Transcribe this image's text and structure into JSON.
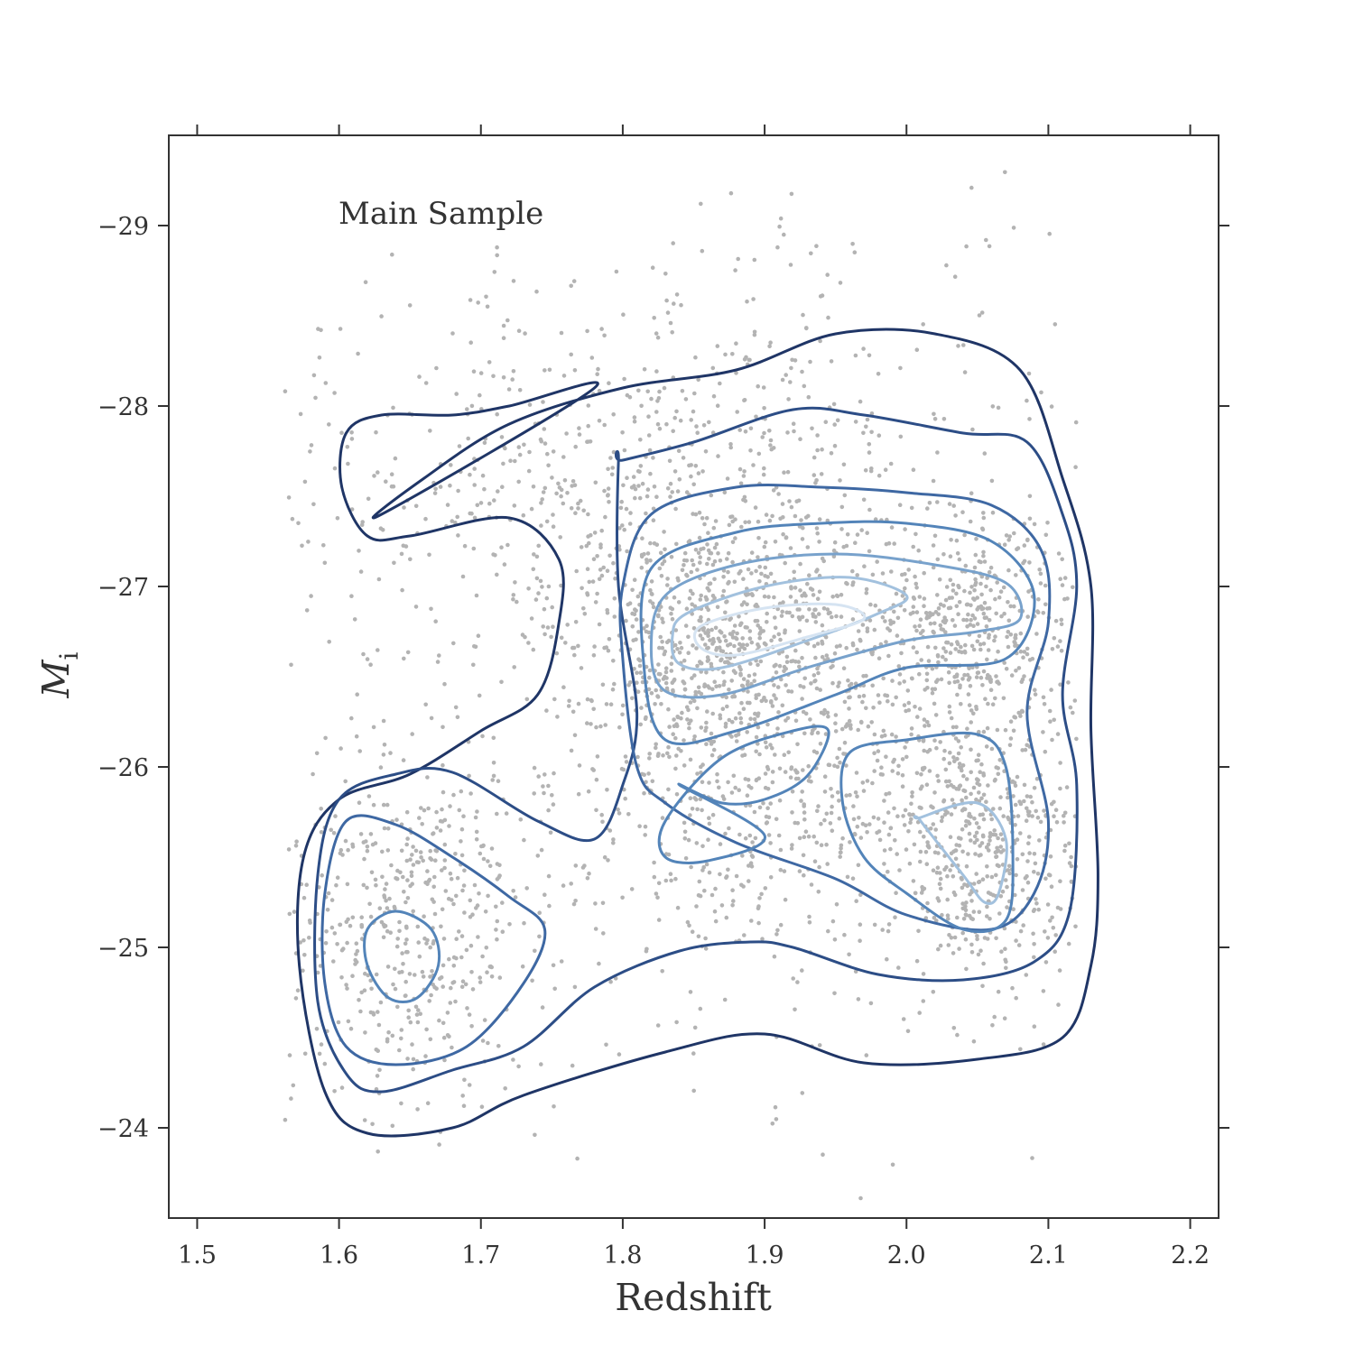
{
  "chart_data": {
    "type": "scatter",
    "title": "",
    "annotation": "Main Sample",
    "xlabel": "Redshift",
    "ylabel": "M",
    "ylabel_subscript": "i",
    "xlim": [
      1.48,
      2.22
    ],
    "ylim": [
      -23.5,
      -29.5
    ],
    "y_inverted": true,
    "xticks": [
      1.5,
      1.6,
      1.7,
      1.8,
      1.9,
      2.0,
      2.1,
      2.2
    ],
    "xtick_labels": [
      "1.5",
      "1.6",
      "1.7",
      "1.8",
      "1.9",
      "2.0",
      "2.1",
      "2.2"
    ],
    "yticks": [
      -29,
      -28,
      -27,
      -26,
      -25,
      -24
    ],
    "ytick_labels": [
      "−29",
      "−28",
      "−27",
      "−26",
      "−25",
      "−24"
    ],
    "grid": false,
    "colors": {
      "points": "#b3b3b3",
      "axes": "#333333",
      "contour_levels": [
        "#1f3566",
        "#2c4d86",
        "#3e68a3",
        "#5384b9",
        "#78a2cc",
        "#a2c1de",
        "#d6e4f2"
      ]
    },
    "scatter_clusters": [
      {
        "cx": 1.87,
        "cy": -26.75,
        "sx": 0.06,
        "sy": 0.35,
        "n": 700
      },
      {
        "cx": 2.04,
        "cy": -26.8,
        "sx": 0.04,
        "sy": 0.3,
        "n": 450
      },
      {
        "cx": 2.05,
        "cy": -25.6,
        "sx": 0.035,
        "sy": 0.4,
        "n": 550
      },
      {
        "cx": 1.89,
        "cy": -25.9,
        "sx": 0.07,
        "sy": 0.5,
        "n": 500
      },
      {
        "cx": 1.645,
        "cy": -25.1,
        "sx": 0.04,
        "sy": 0.5,
        "n": 450
      },
      {
        "cx": 1.68,
        "cy": -27.6,
        "sx": 0.07,
        "sy": 0.35,
        "n": 150
      },
      {
        "cx": 1.86,
        "cy": -27.7,
        "sx": 0.1,
        "sy": 0.5,
        "n": 400
      },
      {
        "cx": 1.86,
        "cy": -26.0,
        "sx": 0.18,
        "sy": 1.2,
        "n": 400
      },
      {
        "cx": 1.9,
        "cy": -28.3,
        "sx": 0.15,
        "sy": 0.5,
        "n": 80
      }
    ],
    "contours": [
      {
        "level": 1,
        "color": "#1f3566",
        "points": [
          [
            1.63,
            -27.4
          ],
          [
            1.66,
            -27.6
          ],
          [
            1.72,
            -27.9
          ],
          [
            1.8,
            -28.1
          ],
          [
            1.88,
            -28.2
          ],
          [
            1.95,
            -28.4
          ],
          [
            2.02,
            -28.4
          ],
          [
            2.08,
            -28.2
          ],
          [
            2.11,
            -27.6
          ],
          [
            2.13,
            -27.0
          ],
          [
            2.13,
            -26.2
          ],
          [
            2.135,
            -25.4
          ],
          [
            2.13,
            -24.9
          ],
          [
            2.11,
            -24.5
          ],
          [
            2.05,
            -24.38
          ],
          [
            1.97,
            -24.36
          ],
          [
            1.9,
            -24.52
          ],
          [
            1.83,
            -24.42
          ],
          [
            1.73,
            -24.18
          ],
          [
            1.68,
            -24.0
          ],
          [
            1.62,
            -23.97
          ],
          [
            1.59,
            -24.2
          ],
          [
            1.572,
            -24.9
          ],
          [
            1.575,
            -25.5
          ],
          [
            1.6,
            -25.82
          ],
          [
            1.65,
            -25.96
          ],
          [
            1.7,
            -26.2
          ],
          [
            1.74,
            -26.4
          ],
          [
            1.755,
            -26.8
          ],
          [
            1.755,
            -27.15
          ],
          [
            1.72,
            -27.38
          ],
          [
            1.65,
            -27.28
          ],
          [
            1.62,
            -27.28
          ],
          [
            1.602,
            -27.55
          ],
          [
            1.605,
            -27.85
          ],
          [
            1.63,
            -27.95
          ],
          [
            1.68,
            -27.95
          ],
          [
            1.72,
            -28.0
          ],
          [
            1.78,
            -28.1
          ]
        ]
      },
      {
        "level": 2,
        "color": "#2c4d86",
        "points": [
          [
            1.8,
            -27.7
          ],
          [
            1.85,
            -27.8
          ],
          [
            1.92,
            -27.98
          ],
          [
            1.97,
            -27.95
          ],
          [
            2.04,
            -27.85
          ],
          [
            2.085,
            -27.8
          ],
          [
            2.11,
            -27.4
          ],
          [
            2.12,
            -27.0
          ],
          [
            2.11,
            -26.4
          ],
          [
            2.12,
            -25.9
          ],
          [
            2.115,
            -25.2
          ],
          [
            2.09,
            -24.92
          ],
          [
            2.04,
            -24.82
          ],
          [
            1.98,
            -24.85
          ],
          [
            1.92,
            -25.0
          ],
          [
            1.89,
            -25.03
          ],
          [
            1.84,
            -24.98
          ],
          [
            1.78,
            -24.78
          ],
          [
            1.73,
            -24.45
          ],
          [
            1.68,
            -24.32
          ],
          [
            1.63,
            -24.2
          ],
          [
            1.605,
            -24.3
          ],
          [
            1.585,
            -24.7
          ],
          [
            1.585,
            -25.4
          ],
          [
            1.6,
            -25.82
          ],
          [
            1.64,
            -25.96
          ],
          [
            1.68,
            -25.97
          ],
          [
            1.74,
            -25.7
          ],
          [
            1.78,
            -25.6
          ],
          [
            1.8,
            -25.9
          ],
          [
            1.81,
            -26.3
          ],
          [
            1.797,
            -27.0
          ],
          [
            1.797,
            -27.7
          ]
        ]
      },
      {
        "level": 3,
        "color": "#3e68a3",
        "points": [
          [
            1.82,
            -27.4
          ],
          [
            1.88,
            -27.55
          ],
          [
            1.94,
            -27.55
          ],
          [
            2.0,
            -27.52
          ],
          [
            2.06,
            -27.45
          ],
          [
            2.095,
            -27.2
          ],
          [
            2.1,
            -26.8
          ],
          [
            2.085,
            -26.3
          ],
          [
            2.1,
            -25.7
          ],
          [
            2.09,
            -25.3
          ],
          [
            2.06,
            -25.1
          ],
          [
            2.0,
            -25.18
          ],
          [
            1.95,
            -25.38
          ],
          [
            1.88,
            -25.58
          ],
          [
            1.83,
            -25.8
          ],
          [
            1.81,
            -26.0
          ],
          [
            1.8,
            -26.6
          ],
          [
            1.8,
            -27.0
          ]
        ]
      },
      {
        "level": 3,
        "color": "#3e68a3",
        "points": [
          [
            1.605,
            -25.7
          ],
          [
            1.64,
            -25.68
          ],
          [
            1.68,
            -25.5
          ],
          [
            1.72,
            -25.28
          ],
          [
            1.745,
            -25.1
          ],
          [
            1.73,
            -24.8
          ],
          [
            1.69,
            -24.45
          ],
          [
            1.64,
            -24.35
          ],
          [
            1.605,
            -24.45
          ],
          [
            1.59,
            -24.8
          ],
          [
            1.59,
            -25.3
          ]
        ]
      },
      {
        "level": 4,
        "color": "#5384b9",
        "points": [
          [
            1.82,
            -27.1
          ],
          [
            1.88,
            -27.3
          ],
          [
            1.94,
            -27.35
          ],
          [
            2.0,
            -27.35
          ],
          [
            2.06,
            -27.25
          ],
          [
            2.09,
            -26.95
          ],
          [
            2.07,
            -26.6
          ],
          [
            2.0,
            -26.55
          ],
          [
            1.95,
            -26.4
          ],
          [
            1.88,
            -26.2
          ],
          [
            1.83,
            -26.15
          ],
          [
            1.815,
            -26.55
          ]
        ]
      },
      {
        "level": 4,
        "color": "#5384b9",
        "points": [
          [
            1.84,
            -25.9
          ],
          [
            1.87,
            -25.8
          ],
          [
            1.9,
            -25.82
          ],
          [
            1.93,
            -25.95
          ],
          [
            1.945,
            -26.2
          ],
          [
            1.92,
            -26.2
          ],
          [
            1.87,
            -26.05
          ],
          [
            1.83,
            -25.7
          ],
          [
            1.83,
            -25.5
          ],
          [
            1.86,
            -25.48
          ],
          [
            1.9,
            -25.62
          ]
        ]
      },
      {
        "level": 4,
        "color": "#5384b9",
        "points": [
          [
            1.96,
            -26.08
          ],
          [
            2.0,
            -26.15
          ],
          [
            2.05,
            -26.18
          ],
          [
            2.07,
            -26.0
          ],
          [
            2.075,
            -25.5
          ],
          [
            2.07,
            -25.15
          ],
          [
            2.04,
            -25.1
          ],
          [
            2.0,
            -25.3
          ],
          [
            1.97,
            -25.5
          ],
          [
            1.955,
            -25.8
          ]
        ]
      },
      {
        "level": 4,
        "color": "#5384b9",
        "points": [
          [
            1.64,
            -25.2
          ],
          [
            1.665,
            -25.1
          ],
          [
            1.67,
            -24.9
          ],
          [
            1.655,
            -24.72
          ],
          [
            1.635,
            -24.72
          ],
          [
            1.62,
            -24.9
          ],
          [
            1.62,
            -25.1
          ]
        ]
      },
      {
        "level": 5,
        "color": "#78a2cc",
        "points": [
          [
            1.83,
            -26.95
          ],
          [
            1.88,
            -27.12
          ],
          [
            1.95,
            -27.18
          ],
          [
            2.02,
            -27.12
          ],
          [
            2.07,
            -27.02
          ],
          [
            2.08,
            -26.82
          ],
          [
            2.05,
            -26.75
          ],
          [
            2.0,
            -26.7
          ],
          [
            1.93,
            -26.55
          ],
          [
            1.87,
            -26.4
          ],
          [
            1.83,
            -26.42
          ],
          [
            1.82,
            -26.65
          ]
        ]
      },
      {
        "level": 6,
        "color": "#a2c1de",
        "points": [
          [
            1.845,
            -26.85
          ],
          [
            1.9,
            -27.0
          ],
          [
            1.96,
            -27.05
          ],
          [
            2.0,
            -26.95
          ],
          [
            1.98,
            -26.85
          ],
          [
            1.93,
            -26.7
          ],
          [
            1.87,
            -26.55
          ],
          [
            1.84,
            -26.57
          ],
          [
            1.835,
            -26.72
          ]
        ]
      },
      {
        "level": 6,
        "color": "#a2c1de",
        "points": [
          [
            2.01,
            -25.72
          ],
          [
            2.05,
            -25.8
          ],
          [
            2.07,
            -25.6
          ],
          [
            2.065,
            -25.3
          ],
          [
            2.055,
            -25.25
          ],
          [
            2.04,
            -25.4
          ],
          [
            2.01,
            -25.7
          ]
        ]
      },
      {
        "level": 7,
        "color": "#d6e4f2",
        "points": [
          [
            1.855,
            -26.78
          ],
          [
            1.9,
            -26.88
          ],
          [
            1.95,
            -26.9
          ],
          [
            1.97,
            -26.82
          ],
          [
            1.93,
            -26.72
          ],
          [
            1.88,
            -26.62
          ],
          [
            1.855,
            -26.66
          ]
        ]
      }
    ]
  }
}
